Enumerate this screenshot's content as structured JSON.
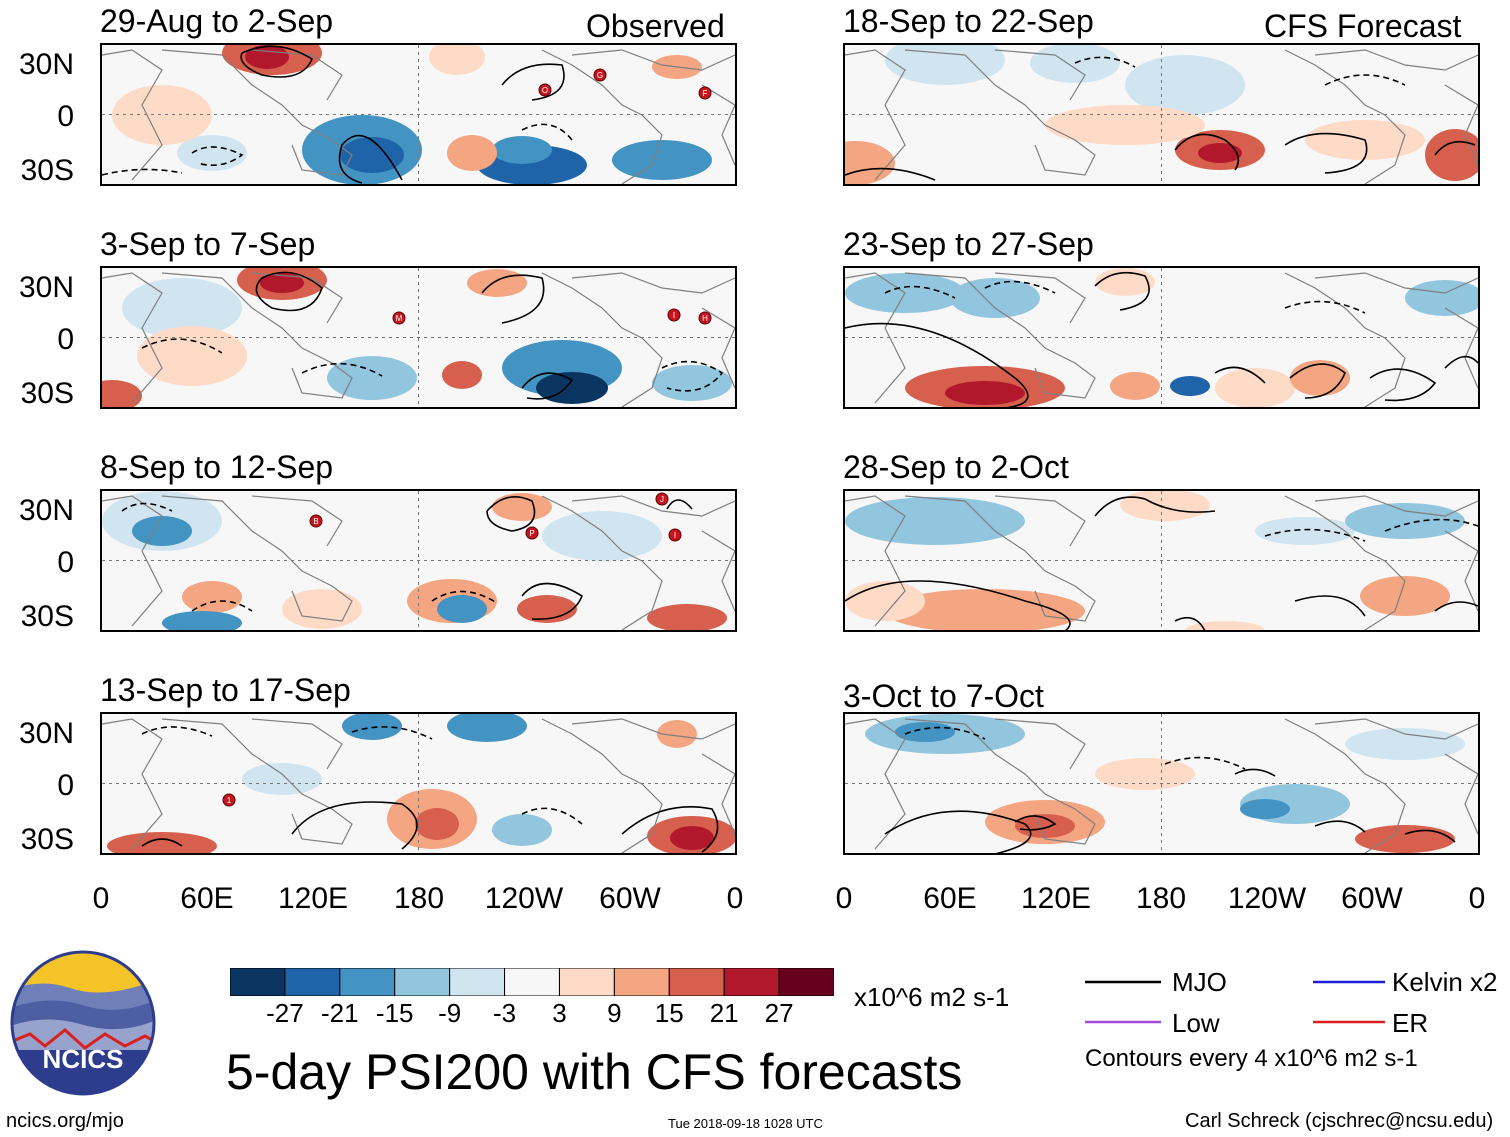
{
  "colors": {
    "scale": [
      "#0a3561",
      "#1f63a8",
      "#4393c3",
      "#92c5de",
      "#d1e5f0",
      "#f7f7f7",
      "#fddbc7",
      "#f4a582",
      "#d6604d",
      "#b2182b",
      "#67001f"
    ],
    "land": "#7f7f7f",
    "mjo": "#000000",
    "kelvin": "#1f1fd6",
    "low": "#a24bd8",
    "er": "#d81f1f",
    "storm": "#c8141e",
    "logo_sky": "#f5c428",
    "logo_ring": "#2d3c8c"
  },
  "headers": {
    "observed": "Observed",
    "forecast": "CFS Forecast"
  },
  "lat_labels": [
    "30N",
    "0",
    "30S"
  ],
  "lon_labels": [
    "0",
    "60E",
    "120E",
    "180",
    "120W",
    "60W",
    "0"
  ],
  "panels": {
    "observed": [
      {
        "title": "29-Aug to 2-Sep",
        "storms": [
          "O",
          "G",
          "F"
        ]
      },
      {
        "title": "3-Sep to 7-Sep",
        "storms": [
          "M",
          "I",
          "H"
        ]
      },
      {
        "title": "8-Sep to 12-Sep",
        "storms": [
          "B",
          "P",
          "J",
          "I"
        ]
      },
      {
        "title": "13-Sep to 17-Sep",
        "storms": [
          "1"
        ]
      }
    ],
    "forecast": [
      {
        "title": "18-Sep to 22-Sep"
      },
      {
        "title": "23-Sep to 27-Sep"
      },
      {
        "title": "28-Sep to 2-Oct"
      },
      {
        "title": "3-Oct to 7-Oct"
      }
    ]
  },
  "colorbar": {
    "ticks": [
      "-27",
      "-21",
      "-15",
      "-9",
      "-3",
      "3",
      "9",
      "15",
      "21",
      "27"
    ],
    "units": "x10^6 m2 s-1"
  },
  "legend": {
    "mjo": "MJO",
    "kelvin": "Kelvin x2",
    "low": "Low",
    "er": "ER",
    "contours": "Contours every 4 x10^6 m2 s-1"
  },
  "title": "5-day PSI200 with CFS forecasts",
  "logo": {
    "text": "NCICS"
  },
  "footer": {
    "url": "ncics.org/mjo",
    "timestamp": "Tue 2018-09-18 1028 UTC",
    "author": "Carl Schreck (cjschrec@ncsu.edu)"
  }
}
